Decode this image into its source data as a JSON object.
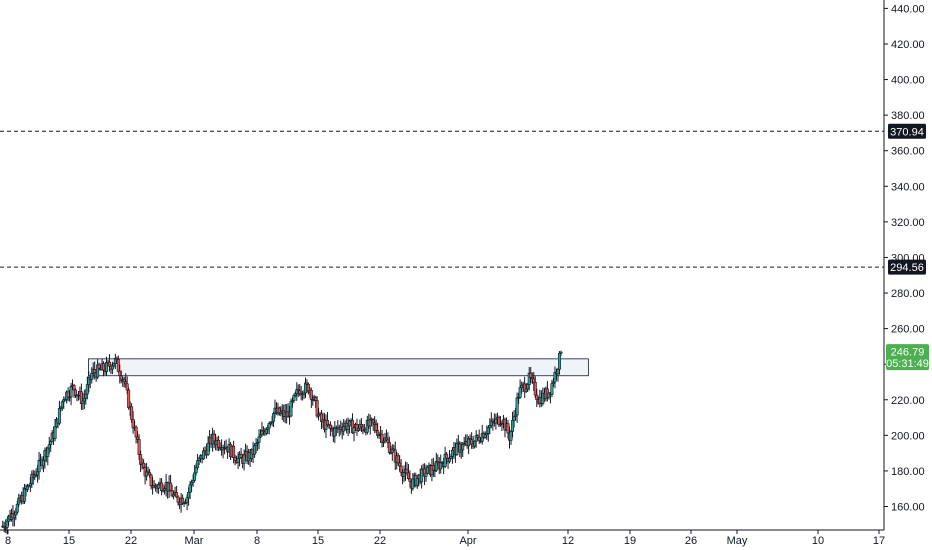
{
  "chart_data": {
    "type": "candlestick",
    "title": "",
    "xlabel": "",
    "ylabel": "",
    "ylim": [
      148,
      444
    ],
    "grid": false,
    "colors": {
      "up": "#26a69a",
      "down": "#ef5350",
      "wick": "#131722",
      "zone_fill": "#f0f3fa",
      "axis_text": "#131722",
      "current_tag": "#4caf50",
      "level_tag": "#131722"
    },
    "y_ticks": [
      "160.00",
      "180.00",
      "200.00",
      "220.00",
      "240.00",
      "260.00",
      "280.00",
      "300.00",
      "320.00",
      "340.00",
      "360.00",
      "380.00",
      "400.00",
      "420.00",
      "440.00"
    ],
    "y_tick_values": [
      160,
      180,
      200,
      220,
      240,
      260,
      280,
      300,
      320,
      340,
      360,
      380,
      400,
      420,
      440
    ],
    "x_ticks": [
      "8",
      "15",
      "22",
      "Mar",
      "8",
      "15",
      "22",
      "Apr",
      "12",
      "19",
      "26",
      "May",
      "10",
      "17"
    ],
    "x_tick_days": [
      0,
      7,
      14,
      21,
      28,
      35,
      42,
      52,
      63,
      70,
      77,
      83,
      92,
      99
    ],
    "horizontal_levels": [
      {
        "label": "370.94",
        "value": 370.94
      },
      {
        "label": "294.56",
        "value": 294.56
      }
    ],
    "resistance_zone": {
      "day_start": 9.2,
      "day_end": 65.3,
      "price_low": 233.5,
      "price_high": 243.0
    },
    "current_price": {
      "label": "246.79",
      "value": 246.79,
      "countdown": "05:31:49"
    },
    "price_path_days": [
      -0.6,
      1.2,
      3.5,
      5.2,
      6.4,
      7.5,
      8.6,
      9.6,
      11.2,
      12.2,
      13.2,
      14.3,
      15.2,
      16.5,
      17.8,
      19.0,
      20.2,
      21.3,
      23.0,
      24.6,
      26.0,
      27.4,
      28.7,
      30.0,
      31.5,
      32.8,
      34.0,
      35.3,
      36.7,
      38.0,
      39.5,
      41.2,
      42.8,
      44.6,
      45.6,
      46.8,
      48.6,
      50.6,
      52.8,
      54.6,
      55.7,
      56.6,
      57.6,
      58.8,
      59.8,
      61.0,
      62.3
    ],
    "price_path_values": [
      149,
      161,
      182,
      200,
      222,
      227,
      219,
      235,
      238,
      242,
      231,
      205,
      183,
      171,
      173,
      164,
      165,
      183,
      198,
      194,
      186,
      189,
      202,
      213,
      211,
      226,
      227,
      208,
      202,
      206,
      204,
      206,
      196,
      180,
      173,
      178,
      183,
      192,
      197,
      206,
      210,
      199,
      224,
      232,
      220,
      225,
      246.8
    ]
  }
}
